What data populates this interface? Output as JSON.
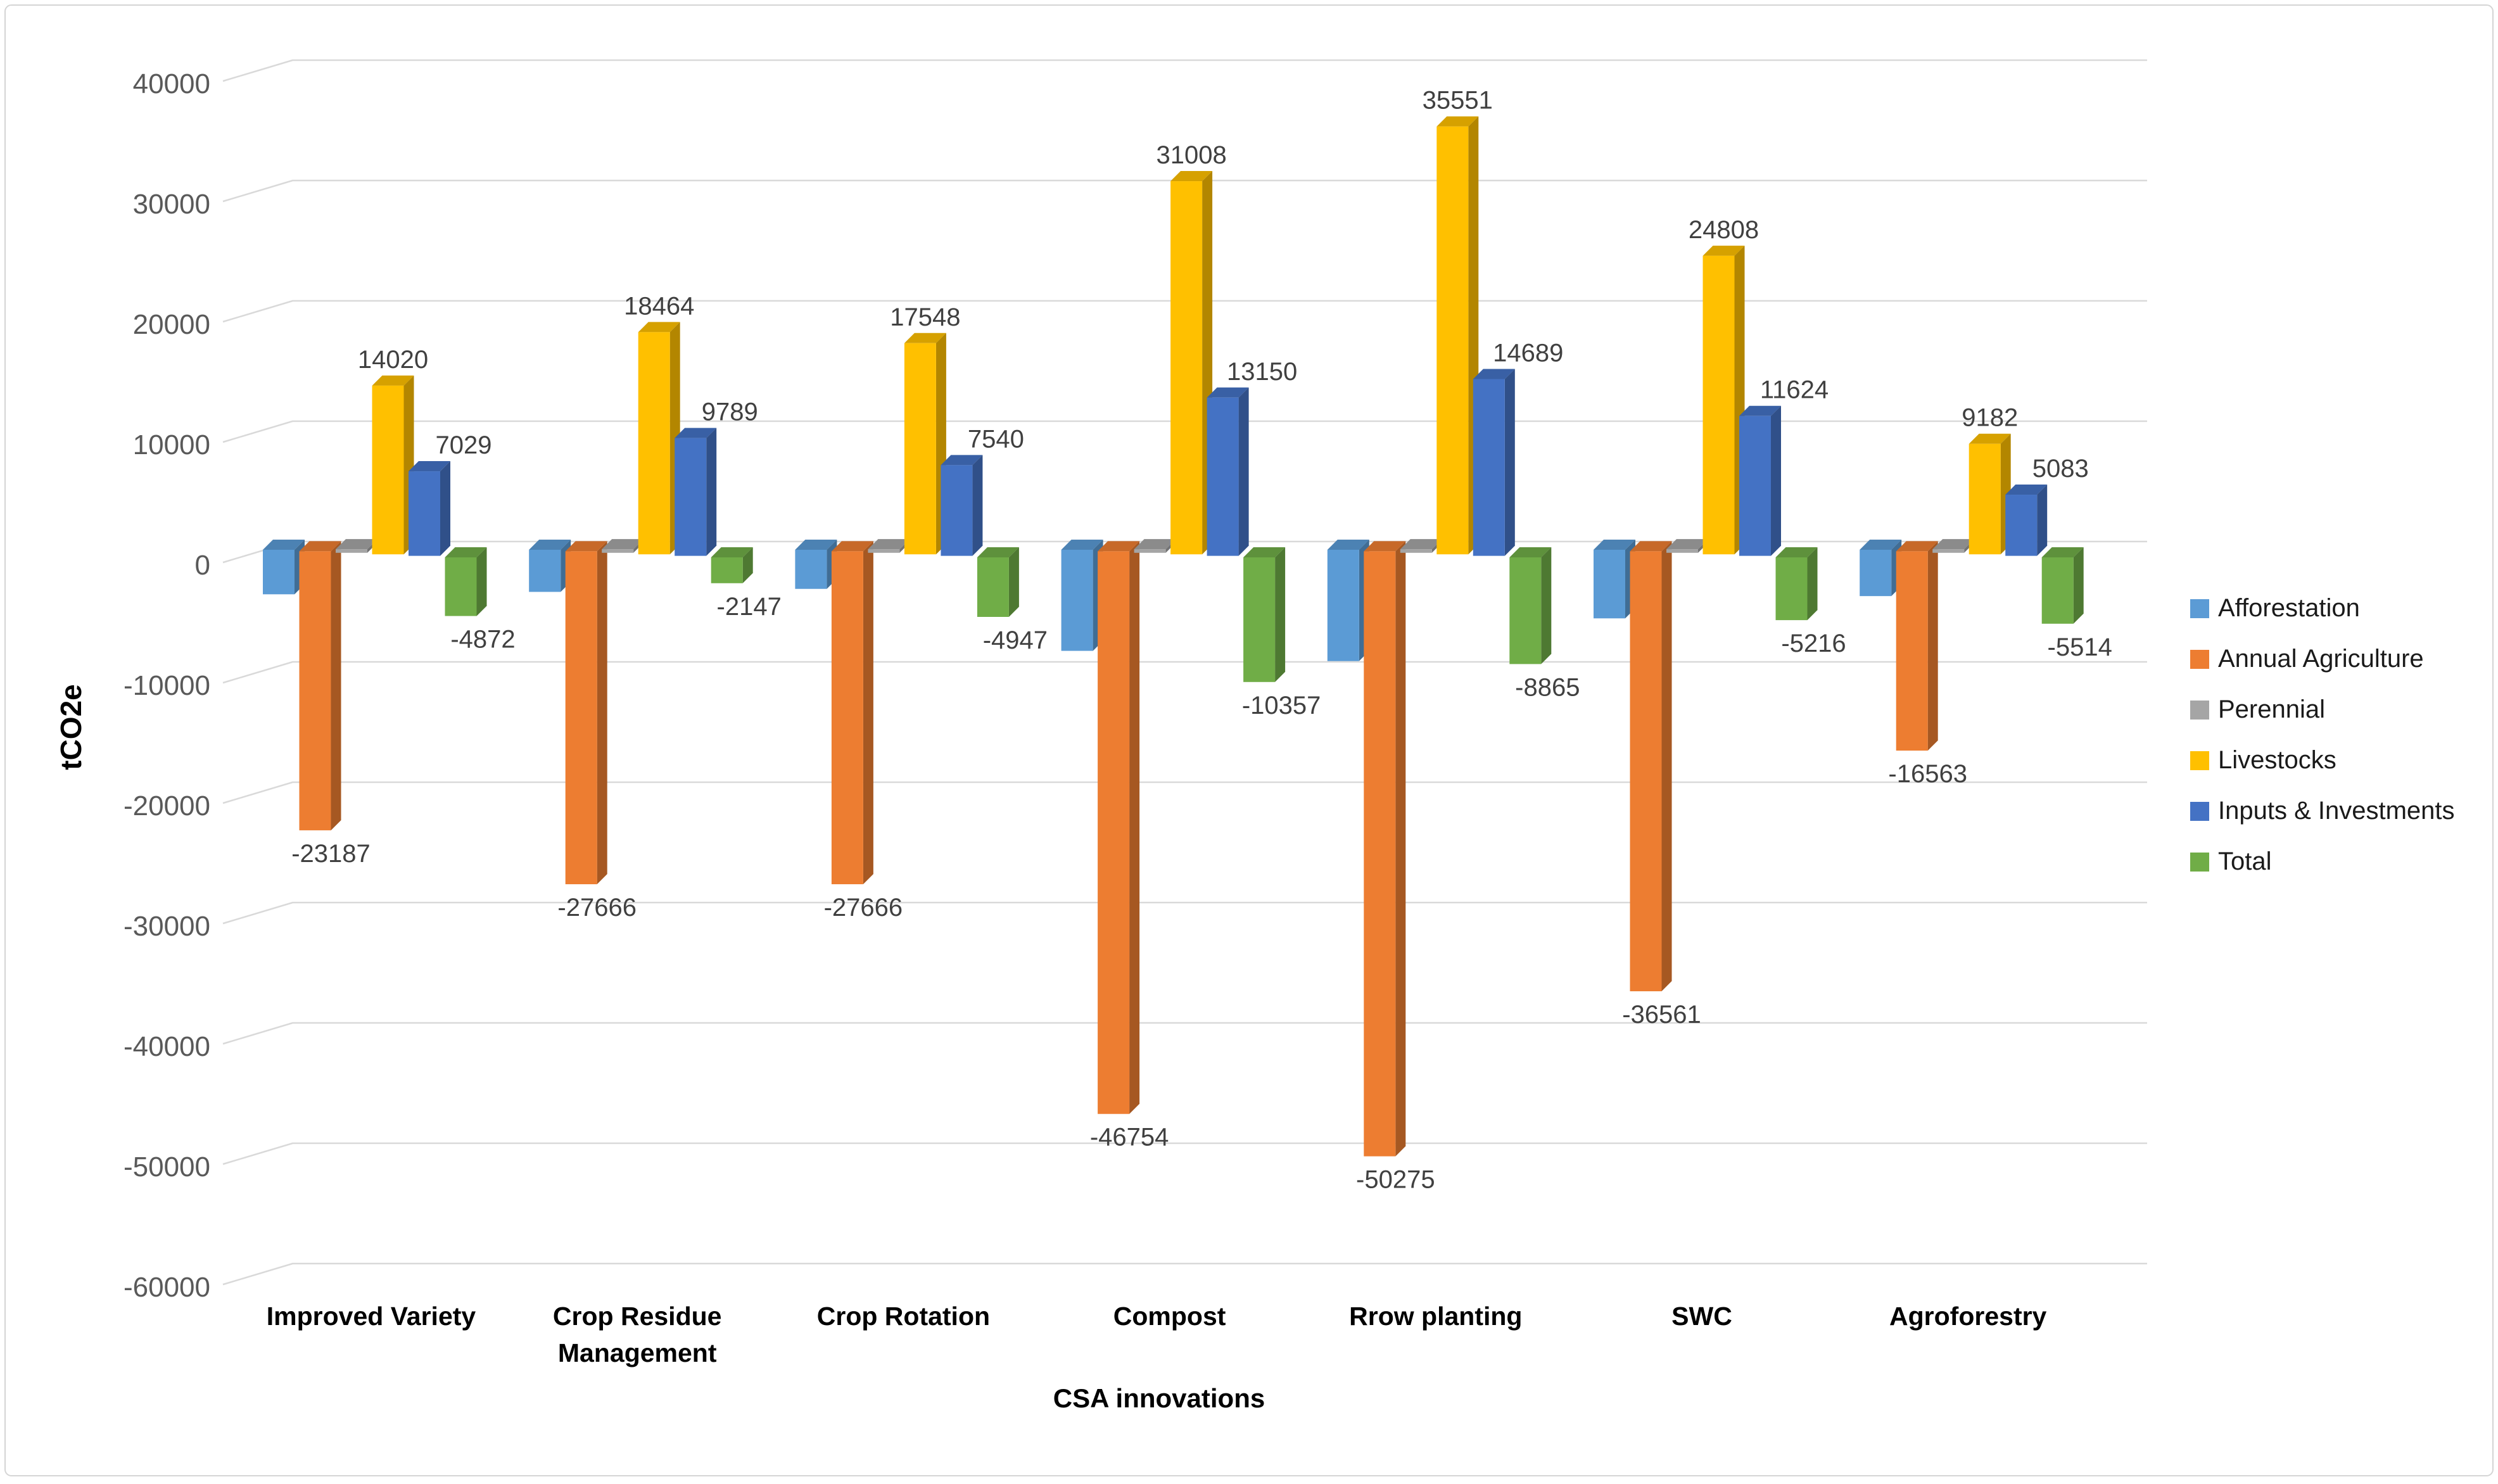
{
  "chart_data": {
    "type": "bar",
    "style": "3d-clustered-column",
    "title": "",
    "xlabel": "CSA innovations",
    "ylabel": "tCO2e",
    "categories": [
      "Improved Variety",
      "Crop Residue Management",
      "Crop Rotation",
      "Compost",
      "Rrow planting",
      "SWC",
      "Agroforestry"
    ],
    "category_lines": [
      [
        "Improved Variety"
      ],
      [
        "Crop Residue",
        "Management"
      ],
      [
        "Crop Rotation"
      ],
      [
        "Compost"
      ],
      [
        "Rrow planting"
      ],
      [
        "SWC"
      ],
      [
        "Agroforestry"
      ]
    ],
    "series": [
      {
        "name": "Afforestation",
        "color": "#5B9BD5",
        "labels_shown": false,
        "values_estimated": true,
        "values": [
          -3700,
          -3500,
          -3250,
          -8400,
          -9250,
          -5700,
          -3850
        ]
      },
      {
        "name": "Annual Agriculture",
        "color": "#ED7D31",
        "labels_shown": true,
        "values_estimated": false,
        "values": [
          -23187,
          -27666,
          -27666,
          -46754,
          -50275,
          -36561,
          -16563
        ]
      },
      {
        "name": "Perennial",
        "color": "#A5A5A5",
        "labels_shown": false,
        "values_estimated": true,
        "values": [
          300,
          300,
          300,
          300,
          300,
          300,
          300
        ]
      },
      {
        "name": "Livestocks",
        "color": "#FFC000",
        "labels_shown": true,
        "values_estimated": false,
        "values": [
          14020,
          18464,
          17548,
          31008,
          35551,
          24808,
          9182
        ]
      },
      {
        "name": "Inputs & Investments",
        "color": "#4472C4",
        "labels_shown": true,
        "values_estimated": false,
        "values": [
          7029,
          9789,
          7540,
          13150,
          14689,
          11624,
          5083
        ]
      },
      {
        "name": "Total",
        "color": "#70AD47",
        "labels_shown": true,
        "values_estimated": false,
        "values": [
          -4872,
          -2147,
          -4947,
          -10357,
          -8865,
          -5216,
          -5514
        ]
      }
    ],
    "y_axis": {
      "min": -60000,
      "max": 40000,
      "tick_step": 10000,
      "tick_labels": [
        "40000",
        "30000",
        "20000",
        "10000",
        "0",
        "-10000",
        "-20000",
        "-30000",
        "-40000",
        "-50000",
        "-60000"
      ]
    },
    "legend_position": "right",
    "grid": true,
    "colors": {
      "gridline": "#D9D9D9",
      "tick_text": "#595959",
      "data_label_text": "#404040",
      "category_text": "#000000",
      "axis_title_text": "#000000",
      "legend_text": "#1A1A1A",
      "frame_border": "#D5D5D5",
      "background": "#FFFFFF"
    }
  }
}
